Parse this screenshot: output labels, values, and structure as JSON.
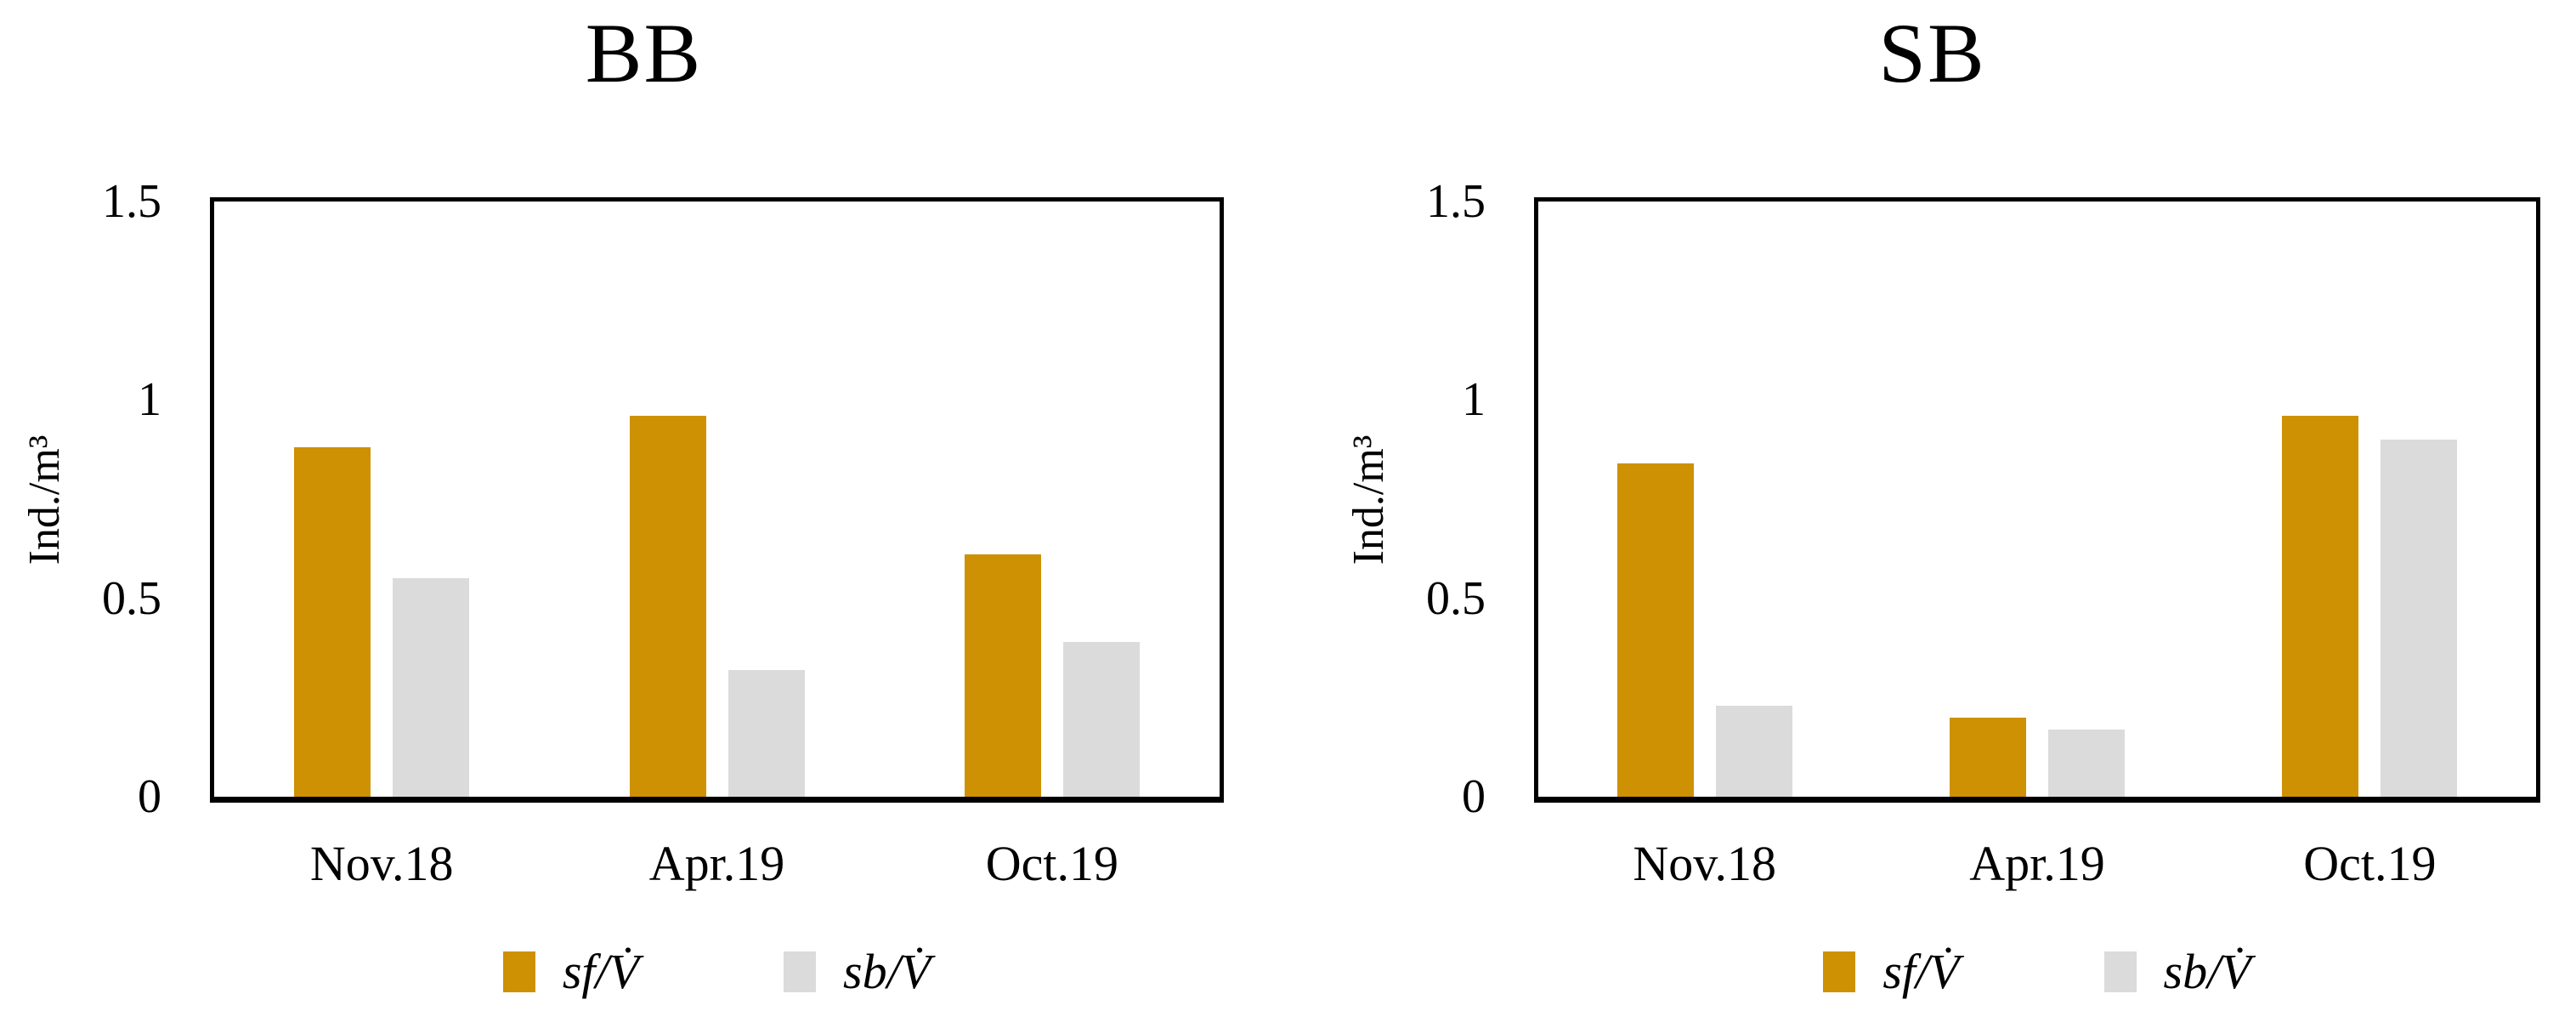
{
  "page": {
    "background": "#ffffff",
    "text_color": "#000000",
    "axis_color": "#000000"
  },
  "chart_data": [
    {
      "type": "bar",
      "title": "BB",
      "ylabel": "Ind./m³",
      "xlabel": "",
      "ylim": [
        0,
        1.5
      ],
      "yticks": [
        {
          "value": 0,
          "label": "0"
        },
        {
          "value": 0.5,
          "label": "0.5"
        },
        {
          "value": 1,
          "label": "1"
        },
        {
          "value": 1.5,
          "label": "1.5"
        }
      ],
      "categories": [
        "Nov.18",
        "Apr.19",
        "Oct.19"
      ],
      "series": [
        {
          "name": "sf/V̇",
          "color": "#CE9104",
          "values": [
            0.88,
            0.96,
            0.61
          ]
        },
        {
          "name": "sb/V̇",
          "color": "#DBDBDB",
          "values": [
            0.55,
            0.32,
            0.39
          ]
        }
      ],
      "legend_position": "bottom",
      "grid": false
    },
    {
      "type": "bar",
      "title": "SB",
      "ylabel": "Ind./m³",
      "xlabel": "",
      "ylim": [
        0,
        1.5
      ],
      "yticks": [
        {
          "value": 0,
          "label": "0"
        },
        {
          "value": 0.5,
          "label": "0.5"
        },
        {
          "value": 1,
          "label": "1"
        },
        {
          "value": 1.5,
          "label": "1.5"
        }
      ],
      "categories": [
        "Nov.18",
        "Apr.19",
        "Oct.19"
      ],
      "series": [
        {
          "name": "sf/V̇",
          "color": "#CE9104",
          "values": [
            0.84,
            0.2,
            0.96
          ]
        },
        {
          "name": "sb/V̇",
          "color": "#DBDBDB",
          "values": [
            0.23,
            0.17,
            0.9
          ]
        }
      ],
      "legend_position": "bottom",
      "grid": false
    }
  ]
}
